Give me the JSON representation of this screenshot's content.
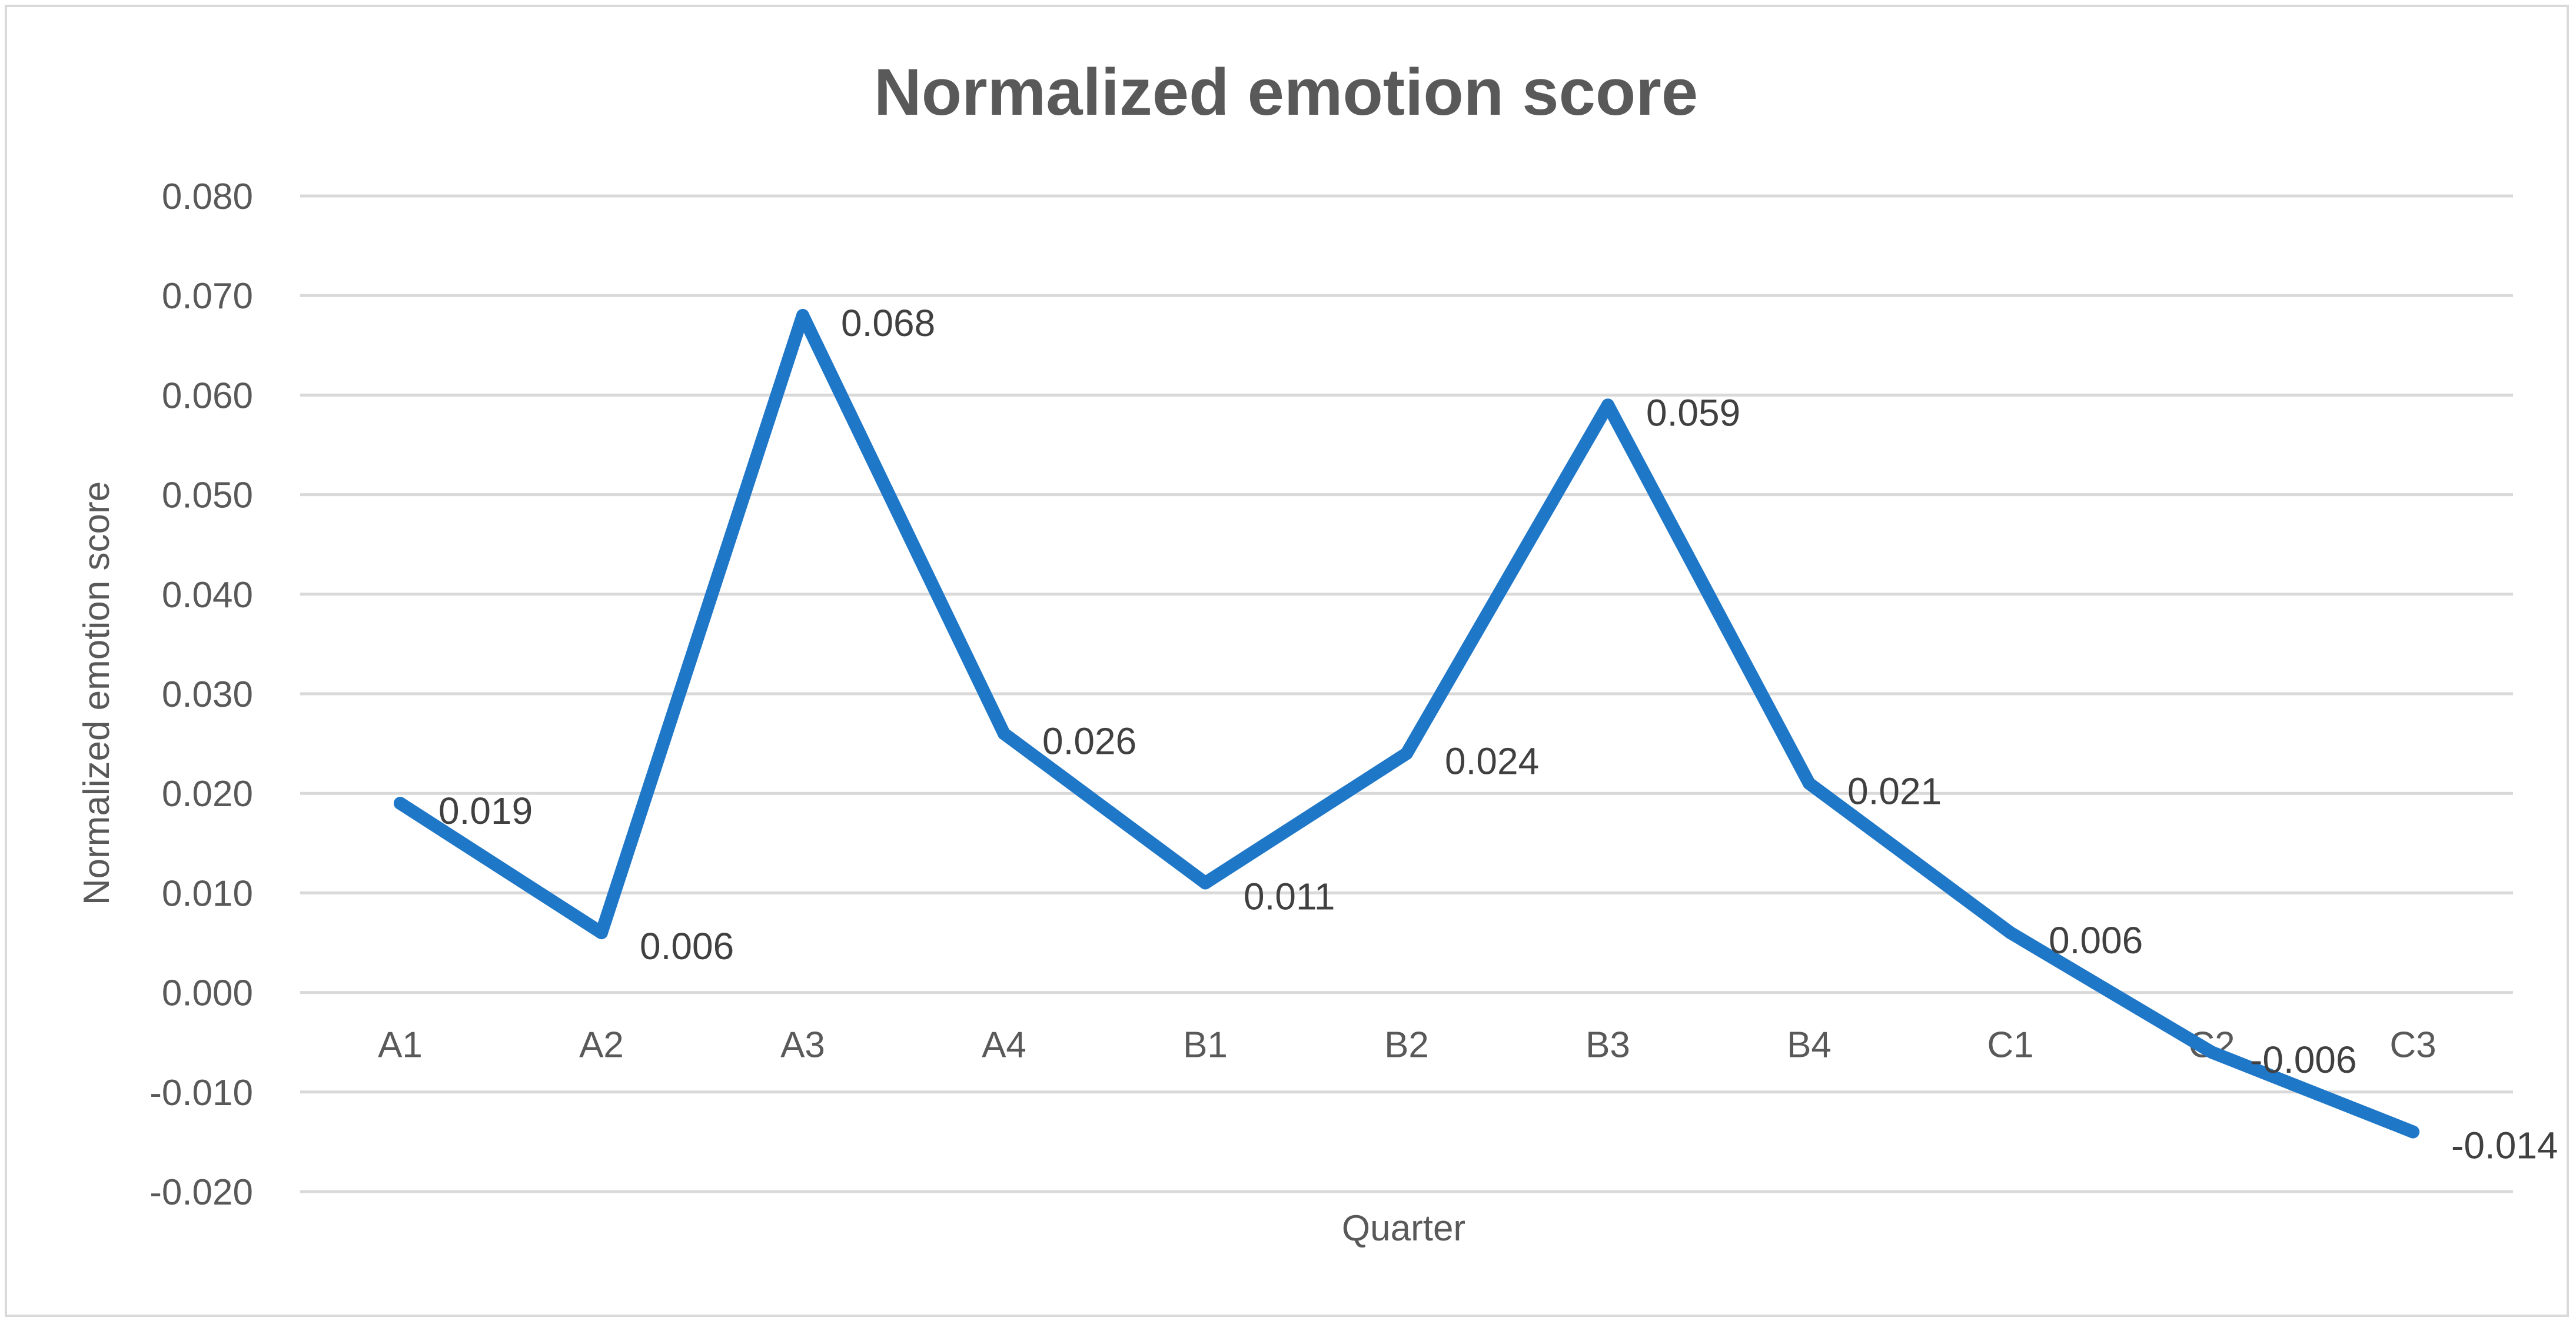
{
  "chart_data": {
    "type": "line",
    "title": "Normalized emotion score",
    "xlabel": "Quarter",
    "ylabel": "Normalized emotion score",
    "categories": [
      "A1",
      "A2",
      "A3",
      "A4",
      "B1",
      "B2",
      "B3",
      "B4",
      "C1",
      "C2",
      "C3"
    ],
    "series": [
      {
        "values": [
          0.019,
          0.006,
          0.068,
          0.026,
          0.011,
          0.024,
          0.059,
          0.021,
          0.006,
          -0.006,
          -0.014
        ],
        "labels": [
          "0.019",
          "0.006",
          "0.068",
          "0.026",
          "0.011",
          "0.024",
          "0.059",
          "0.021",
          "0.006",
          "-0.006",
          "-0.014"
        ],
        "color": "#1f77c8"
      }
    ],
    "ylim": [
      -0.02,
      0.08
    ],
    "yticks": [
      0.08,
      0.07,
      0.06,
      0.05,
      0.04,
      0.03,
      0.02,
      0.01,
      0.0,
      -0.01,
      -0.02
    ],
    "ytick_labels": [
      "0.080",
      "0.070",
      "0.060",
      "0.050",
      "0.040",
      "0.030",
      "0.020",
      "0.010",
      "0.000",
      "-0.010",
      "-0.020"
    ],
    "grid": true,
    "legend": "none"
  }
}
